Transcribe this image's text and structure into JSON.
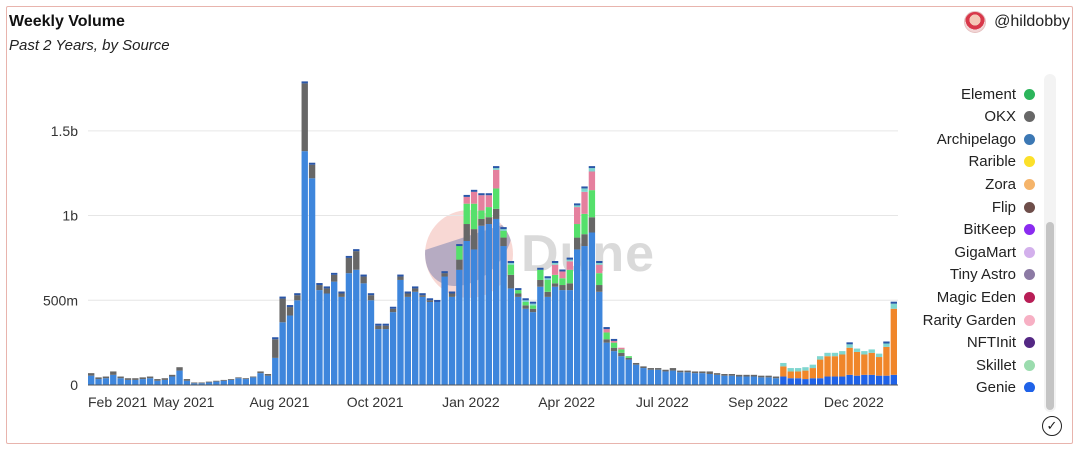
{
  "header": {
    "title": "Weekly Volume",
    "subtitle": "Past 2 Years, by Source",
    "handle": "@hildobby",
    "watermark": "Dune"
  },
  "legend": {
    "items": [
      {
        "label": "Element",
        "color": "#2cb55b"
      },
      {
        "label": "OKX",
        "color": "#676767"
      },
      {
        "label": "Archipelago",
        "color": "#3c78b4"
      },
      {
        "label": "Rarible",
        "color": "#fce02a"
      },
      {
        "label": "Zora",
        "color": "#f5b46a"
      },
      {
        "label": "Flip",
        "color": "#6e4e4a"
      },
      {
        "label": "BitKeep",
        "color": "#8a2bf0"
      },
      {
        "label": "GigaMart",
        "color": "#d3b0ec"
      },
      {
        "label": "Tiny Astro",
        "color": "#8c7aa4"
      },
      {
        "label": "Magic Eden",
        "color": "#b81e56"
      },
      {
        "label": "Rarity Garden",
        "color": "#f7b0c4"
      },
      {
        "label": "NFTInit",
        "color": "#542884"
      },
      {
        "label": "Skillet",
        "color": "#9bdcae"
      },
      {
        "label": "Genie",
        "color": "#1f62e8"
      }
    ]
  },
  "chart_data": {
    "type": "bar",
    "stacked": true,
    "y_ticks": [
      {
        "value": 0,
        "label": "0"
      },
      {
        "value": 500000000,
        "label": "500m"
      },
      {
        "value": 1000000000,
        "label": "1b"
      },
      {
        "value": 1500000000,
        "label": "1.5b"
      }
    ],
    "ylim": [
      0,
      1800000000
    ],
    "x_ticks": [
      {
        "index": 0,
        "label": "Feb 2021"
      },
      {
        "index": 13,
        "label": "May 2021"
      },
      {
        "index": 26,
        "label": "Aug 2021"
      },
      {
        "index": 39,
        "label": "Oct 2021"
      },
      {
        "index": 52,
        "label": "Jan 2022"
      },
      {
        "index": 65,
        "label": "Apr 2022"
      },
      {
        "index": 78,
        "label": "Jul 2022"
      },
      {
        "index": 91,
        "label": "Sep 2022"
      },
      {
        "index": 104,
        "label": "Dec 2022"
      }
    ],
    "series_colors": {
      "main": "#3e86dc",
      "OKX": "#676767",
      "Element": "#55e06b",
      "Magic Eden": "#e5809e",
      "Skillet": "#7fd6cf",
      "Genie": "#1f62e8",
      "Orange": "#f0862a"
    },
    "values": [
      [
        55,
        15,
        0,
        0,
        0,
        0,
        0
      ],
      [
        35,
        10,
        0,
        0,
        0,
        0,
        0
      ],
      [
        40,
        10,
        0,
        0,
        0,
        0,
        0
      ],
      [
        60,
        20,
        0,
        0,
        0,
        0,
        0
      ],
      [
        40,
        10,
        0,
        0,
        0,
        0,
        0
      ],
      [
        30,
        10,
        0,
        0,
        0,
        0,
        0
      ],
      [
        30,
        10,
        0,
        0,
        0,
        0,
        0
      ],
      [
        35,
        10,
        0,
        0,
        0,
        0,
        0
      ],
      [
        40,
        10,
        0,
        0,
        0,
        0,
        0
      ],
      [
        25,
        10,
        0,
        0,
        0,
        0,
        0
      ],
      [
        30,
        10,
        0,
        0,
        0,
        0,
        0
      ],
      [
        50,
        10,
        0,
        0,
        0,
        0,
        0
      ],
      [
        85,
        20,
        0,
        0,
        0,
        0,
        0
      ],
      [
        25,
        10,
        0,
        0,
        0,
        0,
        0
      ],
      [
        10,
        5,
        0,
        0,
        0,
        0,
        0
      ],
      [
        10,
        5,
        0,
        0,
        0,
        0,
        0
      ],
      [
        15,
        5,
        0,
        0,
        0,
        0,
        0
      ],
      [
        20,
        5,
        0,
        0,
        0,
        0,
        0
      ],
      [
        25,
        5,
        0,
        0,
        0,
        0,
        0
      ],
      [
        30,
        5,
        0,
        0,
        0,
        0,
        0
      ],
      [
        40,
        5,
        0,
        0,
        0,
        0,
        0
      ],
      [
        35,
        5,
        0,
        0,
        0,
        0,
        0
      ],
      [
        45,
        5,
        0,
        0,
        0,
        0,
        0
      ],
      [
        70,
        10,
        0,
        0,
        0,
        0,
        0
      ],
      [
        55,
        10,
        0,
        0,
        0,
        0,
        0
      ],
      [
        160,
        110,
        0,
        0,
        0,
        0,
        0
      ],
      [
        370,
        140,
        0,
        0,
        0,
        0,
        0
      ],
      [
        410,
        50,
        0,
        0,
        0,
        0,
        0
      ],
      [
        500,
        30,
        0,
        0,
        0,
        0,
        0
      ],
      [
        1380,
        400,
        0,
        0,
        0,
        0,
        0
      ],
      [
        1220,
        80,
        0,
        0,
        0,
        0,
        0
      ],
      [
        560,
        30,
        0,
        0,
        0,
        0,
        0
      ],
      [
        540,
        30,
        0,
        0,
        0,
        0,
        0
      ],
      [
        610,
        40,
        0,
        0,
        0,
        0,
        0
      ],
      [
        520,
        20,
        0,
        0,
        0,
        0,
        0
      ],
      [
        660,
        90,
        0,
        0,
        0,
        0,
        0
      ],
      [
        680,
        110,
        0,
        0,
        0,
        0,
        0
      ],
      [
        600,
        40,
        0,
        0,
        0,
        0,
        0
      ],
      [
        500,
        30,
        0,
        0,
        0,
        0,
        0
      ],
      [
        330,
        20,
        0,
        0,
        0,
        0,
        0
      ],
      [
        330,
        20,
        0,
        0,
        0,
        0,
        0
      ],
      [
        430,
        20,
        0,
        0,
        0,
        0,
        0
      ],
      [
        620,
        20,
        0,
        0,
        0,
        0,
        0
      ],
      [
        520,
        20,
        0,
        0,
        0,
        0,
        0
      ],
      [
        550,
        20,
        0,
        0,
        0,
        0,
        0
      ],
      [
        520,
        10,
        0,
        0,
        0,
        0,
        0
      ],
      [
        490,
        10,
        0,
        0,
        0,
        0,
        0
      ],
      [
        490,
        0,
        0,
        0,
        0,
        0,
        0
      ],
      [
        640,
        20,
        0,
        0,
        0,
        0,
        0
      ],
      [
        520,
        20,
        0,
        0,
        0,
        0,
        0
      ],
      [
        680,
        60,
        80,
        0,
        0,
        0,
        0
      ],
      [
        850,
        100,
        120,
        40,
        0,
        0,
        0
      ],
      [
        800,
        120,
        150,
        70,
        0,
        0,
        0
      ],
      [
        940,
        40,
        50,
        90,
        0,
        0,
        0
      ],
      [
        950,
        40,
        60,
        70,
        0,
        0,
        0
      ],
      [
        980,
        60,
        120,
        110,
        0,
        0,
        10
      ],
      [
        820,
        50,
        40,
        0,
        0,
        0,
        10
      ],
      [
        570,
        80,
        60,
        0,
        0,
        0,
        10
      ],
      [
        520,
        20,
        20,
        0,
        0,
        0,
        0
      ],
      [
        450,
        20,
        20,
        0,
        0,
        0,
        10
      ],
      [
        430,
        20,
        20,
        0,
        0,
        0,
        10
      ],
      [
        580,
        40,
        60,
        0,
        0,
        0,
        0
      ],
      [
        520,
        30,
        70,
        0,
        0,
        0,
        10
      ],
      [
        580,
        20,
        50,
        60,
        0,
        0,
        10
      ],
      [
        560,
        30,
        40,
        40,
        0,
        0,
        0
      ],
      [
        560,
        40,
        80,
        50,
        0,
        0,
        10
      ],
      [
        800,
        70,
        80,
        100,
        0,
        0,
        10
      ],
      [
        820,
        70,
        120,
        130,
        0,
        0,
        20
      ],
      [
        900,
        90,
        160,
        110,
        0,
        0,
        20
      ],
      [
        550,
        40,
        70,
        50,
        0,
        0,
        10
      ],
      [
        250,
        20,
        40,
        20,
        0,
        0,
        0
      ],
      [
        200,
        20,
        30,
        10,
        0,
        0,
        0
      ],
      [
        170,
        20,
        20,
        10,
        0,
        0,
        0
      ],
      [
        150,
        10,
        10,
        0,
        0,
        0,
        0
      ],
      [
        120,
        10,
        0,
        0,
        0,
        0,
        0
      ],
      [
        100,
        10,
        0,
        0,
        0,
        0,
        0
      ],
      [
        90,
        10,
        0,
        0,
        0,
        0,
        0
      ],
      [
        90,
        10,
        0,
        0,
        0,
        0,
        0
      ],
      [
        80,
        10,
        0,
        0,
        0,
        0,
        0
      ],
      [
        85,
        15,
        0,
        0,
        0,
        0,
        0
      ],
      [
        75,
        10,
        0,
        0,
        0,
        0,
        0
      ],
      [
        75,
        10,
        0,
        0,
        0,
        0,
        0
      ],
      [
        70,
        10,
        0,
        0,
        0,
        0,
        0
      ],
      [
        70,
        10,
        0,
        0,
        0,
        0,
        0
      ],
      [
        65,
        15,
        0,
        0,
        0,
        0,
        0
      ],
      [
        60,
        10,
        0,
        0,
        0,
        0,
        0
      ],
      [
        55,
        10,
        0,
        0,
        0,
        0,
        0
      ],
      [
        55,
        10,
        0,
        0,
        0,
        0,
        0
      ],
      [
        50,
        10,
        0,
        0,
        0,
        0,
        0
      ],
      [
        50,
        10,
        0,
        0,
        0,
        0,
        0
      ],
      [
        50,
        10,
        0,
        0,
        0,
        0,
        0
      ],
      [
        45,
        10,
        0,
        0,
        0,
        0,
        0
      ],
      [
        45,
        10,
        0,
        0,
        0,
        0,
        0
      ],
      [
        40,
        10,
        0,
        0,
        0,
        0,
        0
      ],
      [
        50,
        10,
        0,
        0,
        10,
        60,
        10
      ],
      [
        40,
        10,
        0,
        0,
        0,
        40,
        10
      ],
      [
        40,
        10,
        0,
        0,
        0,
        40,
        10
      ],
      [
        35,
        10,
        0,
        0,
        0,
        50,
        10
      ],
      [
        40,
        10,
        0,
        0,
        0,
        60,
        10
      ],
      [
        40,
        10,
        0,
        0,
        0,
        110,
        10
      ],
      [
        50,
        10,
        0,
        0,
        0,
        120,
        10
      ],
      [
        50,
        10,
        0,
        0,
        0,
        120,
        10
      ],
      [
        50,
        10,
        0,
        0,
        0,
        130,
        10
      ],
      [
        60,
        10,
        0,
        0,
        0,
        160,
        10
      ],
      [
        55,
        10,
        0,
        0,
        0,
        140,
        10
      ],
      [
        60,
        10,
        0,
        0,
        0,
        120,
        10
      ],
      [
        60,
        10,
        0,
        0,
        0,
        130,
        10
      ],
      [
        55,
        10,
        0,
        0,
        0,
        110,
        10
      ],
      [
        55,
        10,
        0,
        0,
        0,
        170,
        10
      ],
      [
        60,
        10,
        0,
        0,
        0,
        390,
        20
      ]
    ]
  }
}
